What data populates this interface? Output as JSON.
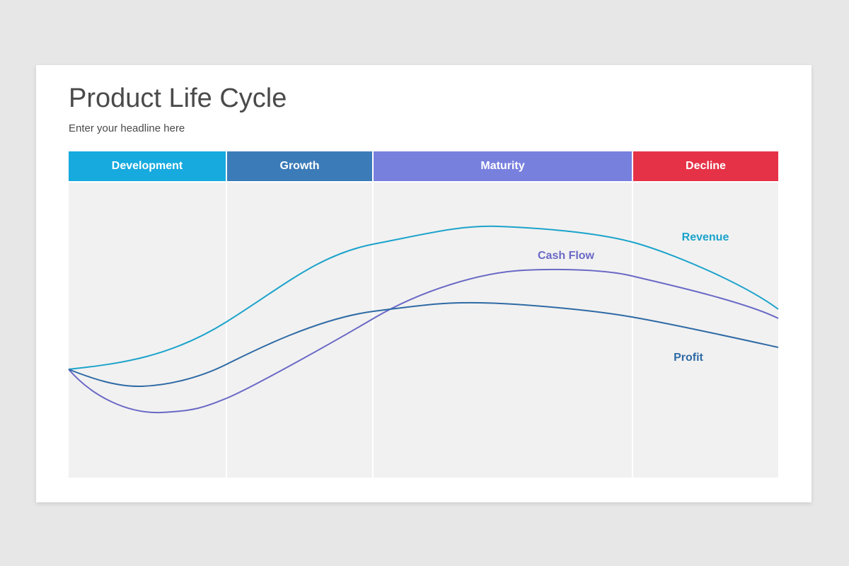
{
  "slide": {
    "title": "Product Life Cycle",
    "subtitle": "Enter your headline here"
  },
  "stages": [
    {
      "label": "Development",
      "color": "#16aadf"
    },
    {
      "label": "Growth",
      "color": "#3b7bb8"
    },
    {
      "label": "Maturity",
      "color": "#7880de"
    },
    {
      "label": "Decline",
      "color": "#e63246"
    }
  ],
  "curves": [
    {
      "label": "Revenue",
      "color": "#1ba3cb"
    },
    {
      "label": "Cash Flow",
      "color": "#6a69c6"
    },
    {
      "label": "Profit",
      "color": "#2e6aa5"
    }
  ]
}
